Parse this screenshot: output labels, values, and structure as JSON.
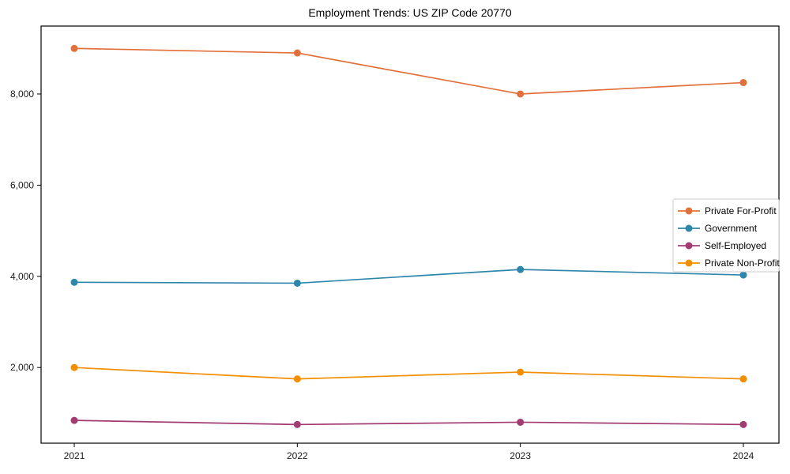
{
  "title": "Employment Trends: US ZIP Code 20770",
  "colors": {
    "axis": "#000000",
    "tick_label": "#1a1a1a",
    "legend_border": "#cccccc",
    "legend_bg": "#ffffff"
  },
  "chart_data": {
    "type": "line",
    "title": "Employment Trends: US ZIP Code 20770",
    "xlabel": "",
    "ylabel": "",
    "x": [
      "2021",
      "2022",
      "2023",
      "2024"
    ],
    "series": [
      {
        "name": "Private For-Profit",
        "color": "#E2703A",
        "values": [
          9000,
          8900,
          8000,
          8250
        ]
      },
      {
        "name": "Government",
        "color": "#2E86AB",
        "values": [
          3870,
          3850,
          4150,
          4030
        ]
      },
      {
        "name": "Self-Employed",
        "color": "#A23B72",
        "values": [
          840,
          750,
          800,
          750
        ]
      },
      {
        "name": "Private Non-Profit",
        "color": "#F18F01",
        "values": [
          2000,
          1750,
          1900,
          1750
        ]
      }
    ],
    "yticks": [
      2000,
      4000,
      6000,
      8000
    ],
    "ytick_labels": [
      "2,000",
      "4,000",
      "6,000",
      "8,000"
    ],
    "ylim": [
      340,
      9490
    ],
    "grid": false,
    "marker": "circle",
    "legend_position": "inside-right"
  }
}
